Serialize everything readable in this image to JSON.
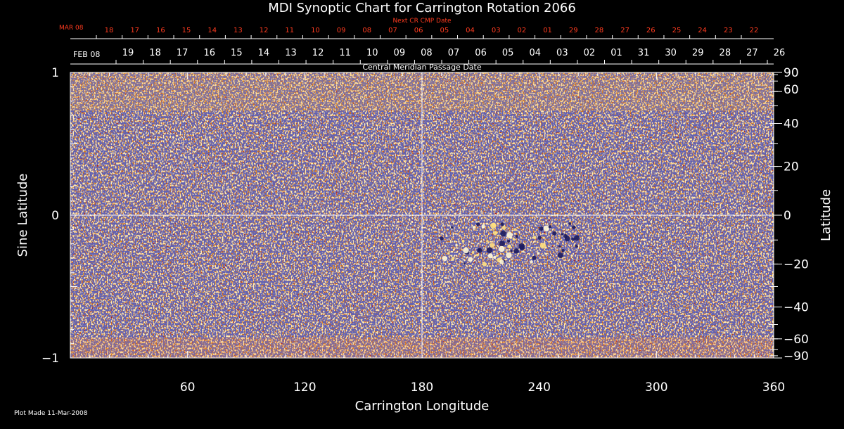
{
  "chart_data": {
    "type": "heatmap",
    "title": "MDI Synoptic Chart for Carrington Rotation 2066",
    "xlabel": "Carrington Longitude",
    "ylabel_left": "Sine Latitude",
    "ylabel_right": "Latitude",
    "xlim": [
      0,
      360
    ],
    "ylim": [
      -1,
      1
    ],
    "x_ticks": [
      60,
      120,
      180,
      240,
      300,
      360
    ],
    "y_left_ticks": [
      1,
      0,
      -1
    ],
    "y_left_tick_labels": [
      "1",
      "0",
      "−1"
    ],
    "y_right_ticks": [
      90,
      60,
      40,
      20,
      0,
      -20,
      -40,
      -60,
      -90
    ],
    "y_right_tick_labels": [
      "90",
      "60",
      "40",
      "20",
      "0",
      "−20",
      "−40",
      "−60",
      "−90"
    ],
    "cmp_axis": {
      "label": "Central Meridian Passage Date",
      "start_label": "FEB 08",
      "dates": [
        "19",
        "18",
        "17",
        "16",
        "15",
        "14",
        "13",
        "12",
        "11",
        "10",
        "09",
        "08",
        "07",
        "06",
        "05",
        "04",
        "03",
        "02",
        "01",
        "31",
        "30",
        "29",
        "28",
        "27",
        "26"
      ]
    },
    "next_cr_axis": {
      "label": "Next CR CMP Date",
      "start_label": "MAR 08",
      "dates": [
        "18",
        "17",
        "16",
        "15",
        "14",
        "13",
        "12",
        "11",
        "10",
        "09",
        "08",
        "07",
        "06",
        "05",
        "04",
        "03",
        "02",
        "01",
        "29",
        "28",
        "27",
        "26",
        "25",
        "24",
        "23",
        "22"
      ]
    },
    "reference_lines": {
      "longitude": 180,
      "sine_latitude": 0
    },
    "active_region": {
      "longitude_range": [
        190,
        260
      ],
      "sine_latitude_range": [
        -0.35,
        -0.05
      ]
    },
    "colormap": [
      "#1a1a66",
      "#5a0000",
      "#b01c00",
      "#e8440a",
      "#ff7a10",
      "#ffd070",
      "#ffffff"
    ]
  },
  "footer": {
    "plot_made": "Plot Made 11-Mar-2008"
  }
}
